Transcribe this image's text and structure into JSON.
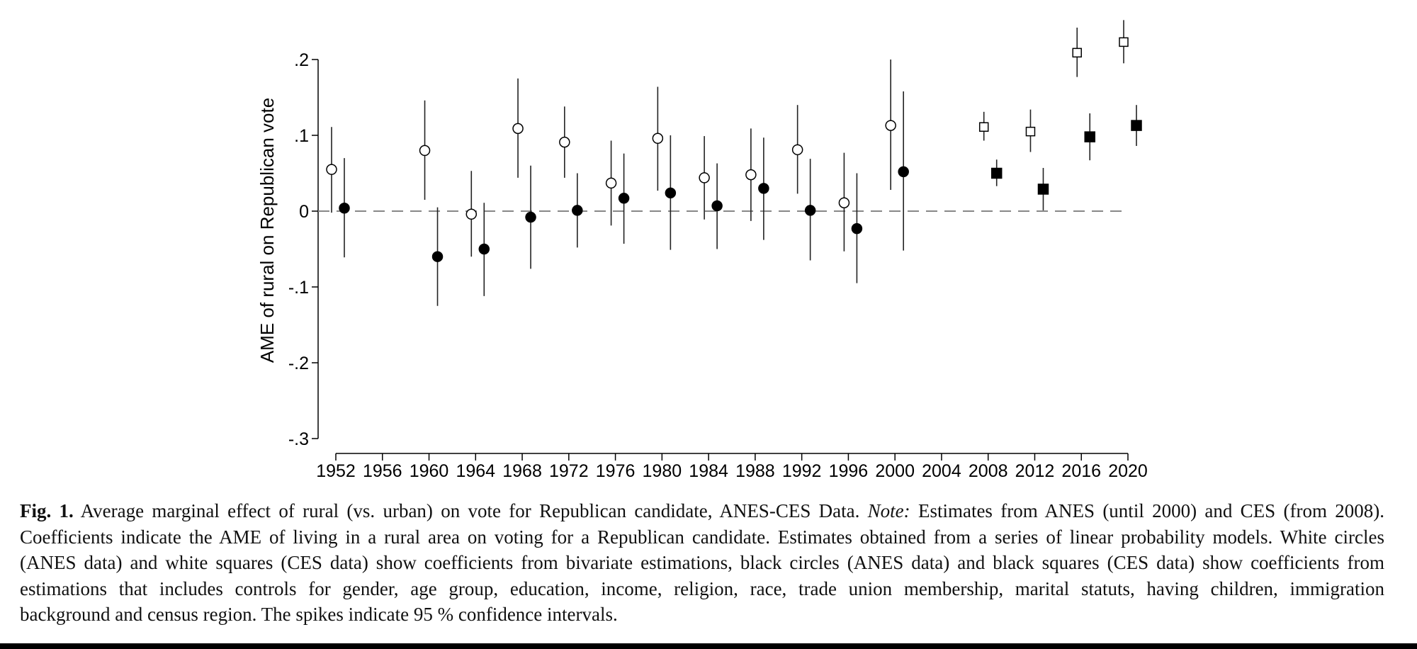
{
  "chart_data": {
    "type": "scatter",
    "subtype": "coefficient plot with 95% confidence intervals",
    "xlabel": "",
    "ylabel": "AME of rural on Republican vote",
    "ylim": [
      -0.3,
      0.2
    ],
    "yticks": [
      0.2,
      0.1,
      0,
      -0.1,
      -0.2,
      -0.3
    ],
    "ytick_labels": [
      ".2",
      ".1",
      "0",
      "-.1",
      "-.2",
      "-.3"
    ],
    "xticks": [
      1952,
      1956,
      1960,
      1964,
      1968,
      1972,
      1976,
      1980,
      1984,
      1988,
      1992,
      1996,
      2000,
      2004,
      2008,
      2012,
      2016,
      2020
    ],
    "xtick_labels": [
      "1952",
      "1956",
      "1960",
      "1964",
      "1968",
      "1972",
      "1976",
      "1980",
      "1984",
      "1988",
      "1992",
      "1996",
      "2000",
      "2004",
      "2008",
      "2012",
      "2016",
      "2020"
    ],
    "reference_line": 0,
    "grid": false,
    "series": [
      {
        "name": "ANES bivariate",
        "marker": "white-circle",
        "x": [
          1952,
          1960,
          1964,
          1968,
          1972,
          1976,
          1980,
          1984,
          1988,
          1992,
          1996,
          2000
        ],
        "y": [
          0.055,
          0.08,
          -0.004,
          0.109,
          0.091,
          0.037,
          0.096,
          0.044,
          0.048,
          0.081,
          0.011,
          0.113
        ],
        "lo": [
          -0.002,
          0.015,
          -0.06,
          0.044,
          0.044,
          -0.019,
          0.027,
          -0.011,
          -0.013,
          0.023,
          -0.053,
          0.028
        ],
        "hi": [
          0.111,
          0.146,
          0.053,
          0.175,
          0.138,
          0.093,
          0.164,
          0.099,
          0.109,
          0.14,
          0.077,
          0.2
        ]
      },
      {
        "name": "ANES with controls",
        "marker": "black-circle",
        "x": [
          1952,
          1960,
          1964,
          1968,
          1972,
          1976,
          1980,
          1984,
          1988,
          1992,
          1996,
          2000
        ],
        "y": [
          0.004,
          -0.06,
          -0.05,
          -0.008,
          0.001,
          0.017,
          0.024,
          0.007,
          0.03,
          0.001,
          -0.023,
          0.052
        ],
        "lo": [
          -0.061,
          -0.125,
          -0.112,
          -0.076,
          -0.048,
          -0.043,
          -0.051,
          -0.05,
          -0.038,
          -0.065,
          -0.095,
          -0.052
        ],
        "hi": [
          0.07,
          0.005,
          0.011,
          0.06,
          0.05,
          0.076,
          0.1,
          0.063,
          0.097,
          0.069,
          0.05,
          0.158
        ]
      },
      {
        "name": "CES bivariate",
        "marker": "white-square",
        "x": [
          2008,
          2012,
          2016,
          2020
        ],
        "y": [
          0.111,
          0.105,
          0.209,
          0.223
        ],
        "lo": [
          0.093,
          0.078,
          0.177,
          0.195
        ],
        "hi": [
          0.131,
          0.134,
          0.242,
          0.252
        ]
      },
      {
        "name": "CES with controls",
        "marker": "black-square",
        "x": [
          2008,
          2012,
          2016,
          2020
        ],
        "y": [
          0.05,
          0.029,
          0.098,
          0.113
        ],
        "lo": [
          0.033,
          0.001,
          0.067,
          0.086
        ],
        "hi": [
          0.068,
          0.057,
          0.129,
          0.14
        ]
      }
    ]
  },
  "caption": {
    "fig_label": "Fig. 1.",
    "line1_a": "Average marginal effect of rural (vs. urban) on vote for Republican candidate, ANES-CES Data.",
    "note_label": "Note:",
    "line1_b": "Estimates from ANES (until 2000) and CES (from 2008).",
    "line2": "Coefficients indicate the AME of living in a rural area on voting for a Republican candidate. Estimates obtained from a series of linear probability models. White circles",
    "line3": "(ANES data) and white squares (CES data) show coefficients from bivariate estimations, black circles (ANES data) and black squares (CES data) show coefficients from",
    "line4": "estimations that includes controls for gender, age group, education, income, religion, race, trade union membership, marital statuts, having children, immigration",
    "line5": "background and census region. The spikes indicate 95 % confidence intervals."
  }
}
